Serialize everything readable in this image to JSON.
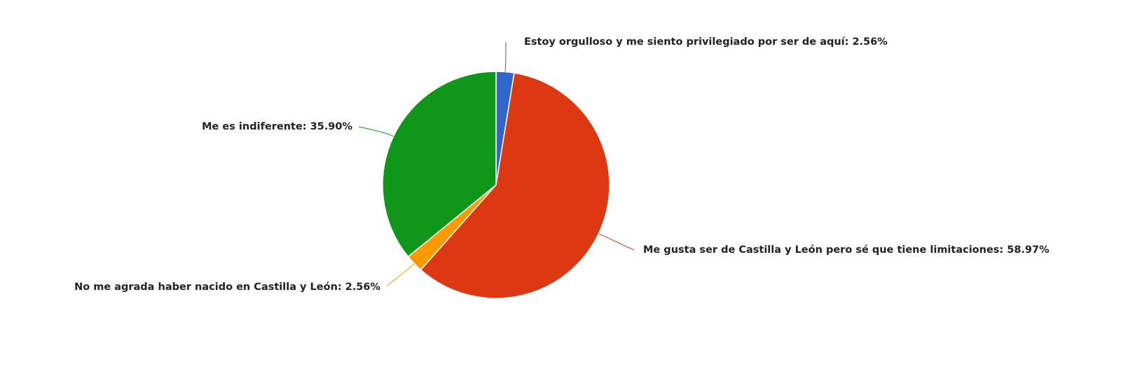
{
  "chart_data": {
    "type": "pie",
    "categories": [
      "Estoy orgulloso y me siento privilegiado por ser de aquí:",
      "Me gusta ser de Castilla y León pero sé que tiene limitaciones:",
      "No me agrada haber nacido en Castilla y León:",
      "Me es indiferente:"
    ],
    "values": [
      2.56,
      58.97,
      2.56,
      35.9
    ],
    "value_labels": [
      "2.56%",
      "58.97%",
      "2.56%",
      "35.90%"
    ],
    "colors": [
      "#3366cc",
      "#dc3912",
      "#ff9900",
      "#109618"
    ]
  }
}
